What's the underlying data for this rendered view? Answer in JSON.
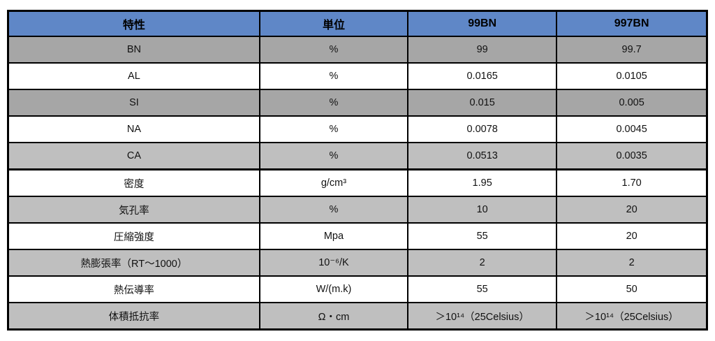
{
  "colors": {
    "header_bg": "#5f87c7",
    "header_text": "#000000",
    "row_dark": "#a6a6a6",
    "row_light": "#bfbfbf",
    "row_white": "#ffffff",
    "border": "#000000",
    "page_bg": "#ffffff"
  },
  "table": {
    "columns": [
      "特性",
      "単位",
      "99BN",
      "997BN"
    ],
    "rows": [
      {
        "property": "BN",
        "unit": "%",
        "val_99bn": "99",
        "val_997bn": "99.7",
        "shade": "dark",
        "section_break": false
      },
      {
        "property": "AL",
        "unit": "%",
        "val_99bn": "0.0165",
        "val_997bn": "0.0105",
        "shade": "white",
        "section_break": false
      },
      {
        "property": "SI",
        "unit": "%",
        "val_99bn": "0.015",
        "val_997bn": "0.005",
        "shade": "dark",
        "section_break": false
      },
      {
        "property": "NA",
        "unit": "%",
        "val_99bn": "0.0078",
        "val_997bn": "0.0045",
        "shade": "white",
        "section_break": false
      },
      {
        "property": "CA",
        "unit": "%",
        "val_99bn": "0.0513",
        "val_997bn": "0.0035",
        "shade": "light",
        "section_break": false
      },
      {
        "property": "密度",
        "unit": "g/cm³",
        "val_99bn": "1.95",
        "val_997bn": "1.70",
        "shade": "white",
        "section_break": true
      },
      {
        "property": "気孔率",
        "unit": "%",
        "val_99bn": "10",
        "val_997bn": "20",
        "shade": "light",
        "section_break": false
      },
      {
        "property": "圧縮強度",
        "unit": "Mpa",
        "val_99bn": "55",
        "val_997bn": "20",
        "shade": "white",
        "section_break": false
      },
      {
        "property": "熱膨張率（RT～1000）",
        "unit": "10⁻⁶/K",
        "val_99bn": "2",
        "val_997bn": "2",
        "shade": "light",
        "section_break": false
      },
      {
        "property": "熱伝導率",
        "unit": "W/(m.k)",
        "val_99bn": "55",
        "val_997bn": "50",
        "shade": "white",
        "section_break": false
      },
      {
        "property": "体積抵抗率",
        "unit": "Ω・cm",
        "val_99bn": "＞10¹⁴（25Celsius）",
        "val_997bn": "＞10¹⁴（25Celsius）",
        "shade": "light",
        "section_break": false
      }
    ]
  },
  "chart_data": {
    "type": "table",
    "title": "",
    "columns": [
      "特性",
      "単位",
      "99BN",
      "997BN"
    ],
    "rows": [
      [
        "BN",
        "%",
        "99",
        "99.7"
      ],
      [
        "AL",
        "%",
        "0.0165",
        "0.0105"
      ],
      [
        "SI",
        "%",
        "0.015",
        "0.005"
      ],
      [
        "NA",
        "%",
        "0.0078",
        "0.0045"
      ],
      [
        "CA",
        "%",
        "0.0513",
        "0.0035"
      ],
      [
        "密度",
        "g/cm³",
        "1.95",
        "1.70"
      ],
      [
        "気孔率",
        "%",
        "10",
        "20"
      ],
      [
        "圧縮強度",
        "Mpa",
        "55",
        "20"
      ],
      [
        "熱膨張率（RT～1000）",
        "10⁻⁶/K",
        "2",
        "2"
      ],
      [
        "熱伝導率",
        "W/(m.k)",
        "55",
        "50"
      ],
      [
        "体積抵抗率",
        "Ω・cm",
        "＞10¹⁴（25Celsius）",
        "＞10¹⁴（25Celsius）"
      ]
    ]
  }
}
